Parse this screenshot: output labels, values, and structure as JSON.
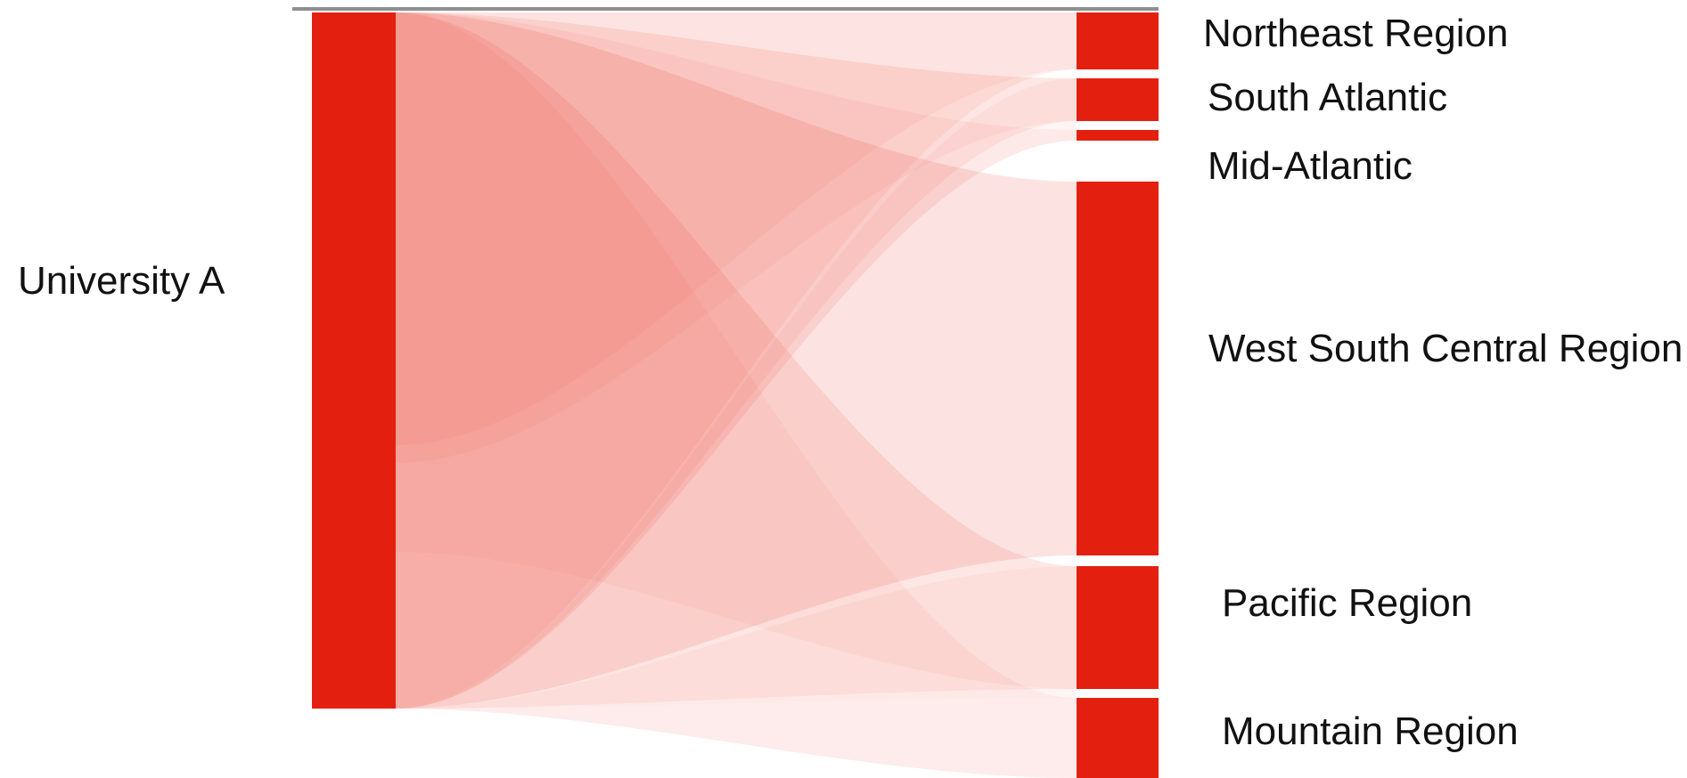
{
  "chart_data": {
    "type": "sankey",
    "source": {
      "name": "University A"
    },
    "targets": [
      {
        "name": "Northeast Region",
        "value": 0.08
      },
      {
        "name": "South Atlantic",
        "value": 0.06
      },
      {
        "name": "Mid-Atlantic",
        "value": 0.015
      },
      {
        "name": "West South Central Region",
        "value": 0.535
      },
      {
        "name": "Pacific Region",
        "value": 0.18
      },
      {
        "name": "Mountain Region",
        "value": 0.13
      }
    ],
    "colors": {
      "node": "#e3200f",
      "flow": "#ee3b2c",
      "baseline": "#8f8f8f",
      "text": "#111111"
    }
  }
}
